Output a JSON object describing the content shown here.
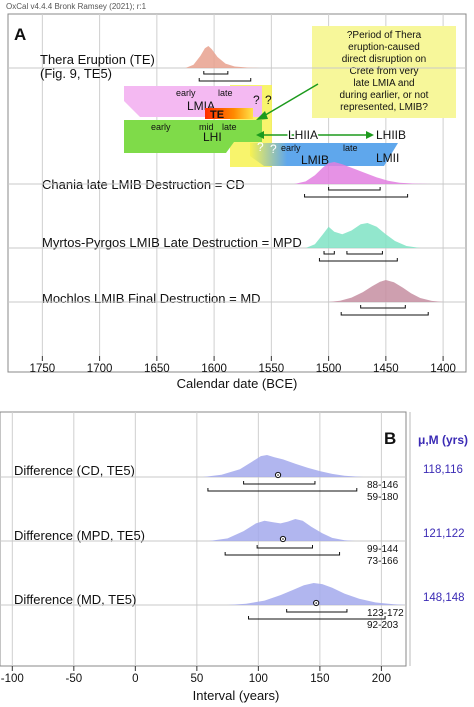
{
  "header": {
    "software": "OxCal v4.4.4 Bronk Ramsey (2021); r:1"
  },
  "chart_data": [
    {
      "panel": "A",
      "type": "area",
      "xlabel": "Calendar date (BCE)",
      "xlim": [
        1780,
        1380
      ],
      "x_ticks": [
        1750,
        1700,
        1650,
        1600,
        1550,
        1500,
        1450,
        1400
      ],
      "x_tick_labels": [
        "1750",
        "1700",
        "1650",
        "1600",
        "1550",
        "1500",
        "1450",
        "1400"
      ],
      "grid": true,
      "series": [
        {
          "name": "Thera Eruption (TE)",
          "subtitle": "(Fig. 9, TE5)",
          "color": "#e8a18e",
          "points": [
            [
              1625,
              0
            ],
            [
              1618,
              0.15
            ],
            [
              1612,
              0.55
            ],
            [
              1608,
              0.9
            ],
            [
              1605,
              1
            ],
            [
              1602,
              0.85
            ],
            [
              1597,
              0.5
            ],
            [
              1590,
              0.2
            ],
            [
              1582,
              0.07
            ],
            [
              1570,
              0.02
            ],
            [
              1560,
              0
            ]
          ],
          "hpd_68": [
            1609,
            1588
          ],
          "hpd_95": [
            1613,
            1568
          ]
        },
        {
          "name": "Chania late LMIB Destruction = CD",
          "color": "#e27fe0",
          "points": [
            [
              1530,
              0
            ],
            [
              1520,
              0.12
            ],
            [
              1512,
              0.4
            ],
            [
              1505,
              0.75
            ],
            [
              1500,
              0.95
            ],
            [
              1495,
              1
            ],
            [
              1488,
              0.9
            ],
            [
              1478,
              0.7
            ],
            [
              1468,
              0.5
            ],
            [
              1458,
              0.3
            ],
            [
              1448,
              0.15
            ],
            [
              1438,
              0.06
            ],
            [
              1425,
              0.02
            ],
            [
              1410,
              0
            ]
          ],
          "hpd_68": [
            1500,
            1455
          ],
          "hpd_95": [
            1521,
            1431
          ]
        },
        {
          "name": "Myrtos-Pyrgos LMIB Late Destruction = MPD",
          "color": "#7fe3c4",
          "points": [
            [
              1520,
              0
            ],
            [
              1512,
              0.15
            ],
            [
              1505,
              0.55
            ],
            [
              1500,
              0.85
            ],
            [
              1495,
              0.65
            ],
            [
              1488,
              0.55
            ],
            [
              1480,
              0.7
            ],
            [
              1472,
              0.95
            ],
            [
              1466,
              1
            ],
            [
              1458,
              0.85
            ],
            [
              1450,
              0.55
            ],
            [
              1442,
              0.28
            ],
            [
              1432,
              0.08
            ],
            [
              1420,
              0
            ]
          ],
          "hpd_68": [
            [
              1504,
              1495
            ],
            [
              1484,
              1453
            ]
          ],
          "hpd_95": [
            1508,
            1440
          ]
        },
        {
          "name": "Mochlos LMIB Final Destruction = MD",
          "color": "#c58ea1",
          "points": [
            [
              1500,
              0
            ],
            [
              1490,
              0.06
            ],
            [
              1480,
              0.2
            ],
            [
              1470,
              0.45
            ],
            [
              1462,
              0.72
            ],
            [
              1455,
              0.92
            ],
            [
              1450,
              1
            ],
            [
              1443,
              0.9
            ],
            [
              1435,
              0.65
            ],
            [
              1428,
              0.4
            ],
            [
              1420,
              0.18
            ],
            [
              1410,
              0.05
            ],
            [
              1400,
              0
            ]
          ],
          "hpd_68": [
            1472,
            1433
          ],
          "hpd_95": [
            1489,
            1413
          ]
        }
      ],
      "periods": {
        "LMIA": {
          "label": "LMIA",
          "early": "early",
          "late": "late",
          "color": "#f4b9f2"
        },
        "TE": {
          "label": "TE"
        },
        "LHI": {
          "label": "LHI",
          "early": "early",
          "mid": "mid",
          "late": "late",
          "color": "#7fdb49"
        },
        "LHIIA": {
          "label": "LHIIA"
        },
        "LHIIB": {
          "label": "LHIIB"
        },
        "LMIB": {
          "label": "LMIB",
          "early": "early",
          "late": "late",
          "color": "#5fa7ec"
        },
        "LMII": {
          "label": "LMII"
        },
        "question_marks": [
          "?",
          "?",
          "?",
          "?"
        ]
      },
      "annotation": {
        "text": [
          "?Period of Thera",
          "eruption-caused",
          "direct disruption on",
          "Crete from very",
          "late LMIA and",
          "during earlier, or not",
          "represented, LMIB?"
        ],
        "color": "#f7f79a"
      }
    },
    {
      "panel": "B",
      "type": "area",
      "xlabel": "Interval (years)",
      "xlim": [
        -110,
        220
      ],
      "x_ticks": [
        -100,
        -50,
        0,
        50,
        100,
        150,
        200
      ],
      "x_tick_labels": [
        "-100",
        "-50",
        "0",
        "50",
        "100",
        "150",
        "200"
      ],
      "grid": true,
      "stats_header": "μ,M (yrs)",
      "series": [
        {
          "name": "Difference (CD, TE5)",
          "color": "#a3a9ec",
          "points": [
            [
              55,
              0
            ],
            [
              70,
              0.1
            ],
            [
              85,
              0.35
            ],
            [
              95,
              0.7
            ],
            [
              102,
              0.95
            ],
            [
              107,
              1
            ],
            [
              113,
              0.9
            ],
            [
              120,
              0.8
            ],
            [
              130,
              0.6
            ],
            [
              140,
              0.42
            ],
            [
              150,
              0.27
            ],
            [
              160,
              0.14
            ],
            [
              170,
              0.06
            ],
            [
              185,
              0
            ]
          ],
          "mean_marker": 116,
          "hpd_68": [
            88,
            146
          ],
          "hpd_95": [
            59,
            180
          ],
          "range_68_label": "88-146",
          "range_95_label": "59-180",
          "mu_m": "118,116"
        },
        {
          "name": "Difference (MPD, TE5)",
          "color": "#a3a9ec",
          "points": [
            [
              60,
              0
            ],
            [
              75,
              0.12
            ],
            [
              88,
              0.45
            ],
            [
              98,
              0.8
            ],
            [
              105,
              0.92
            ],
            [
              112,
              0.85
            ],
            [
              118,
              0.8
            ],
            [
              124,
              0.88
            ],
            [
              130,
              1
            ],
            [
              136,
              0.92
            ],
            [
              143,
              0.65
            ],
            [
              152,
              0.35
            ],
            [
              160,
              0.14
            ],
            [
              170,
              0.03
            ],
            [
              178,
              0
            ]
          ],
          "mean_marker": 120,
          "hpd_68": [
            99,
            144
          ],
          "hpd_95": [
            73,
            166
          ],
          "range_68_label": "99-144",
          "range_95_label": "73-166",
          "mu_m": "121,122"
        },
        {
          "name": "Difference (MD, TE5)",
          "color": "#a3a9ec",
          "points": [
            [
              75,
              0
            ],
            [
              90,
              0.06
            ],
            [
              105,
              0.2
            ],
            [
              118,
              0.45
            ],
            [
              128,
              0.68
            ],
            [
              137,
              0.9
            ],
            [
              145,
              1
            ],
            [
              152,
              0.95
            ],
            [
              160,
              0.78
            ],
            [
              170,
              0.52
            ],
            [
              182,
              0.28
            ],
            [
              195,
              0.12
            ],
            [
              210,
              0.03
            ],
            [
              220,
              0
            ]
          ],
          "mean_marker": 147,
          "hpd_68": [
            123,
            172
          ],
          "hpd_95": [
            92,
            203
          ],
          "range_68_label": "123-172",
          "range_95_label": "92-203",
          "mu_m": "148,148"
        }
      ]
    }
  ]
}
